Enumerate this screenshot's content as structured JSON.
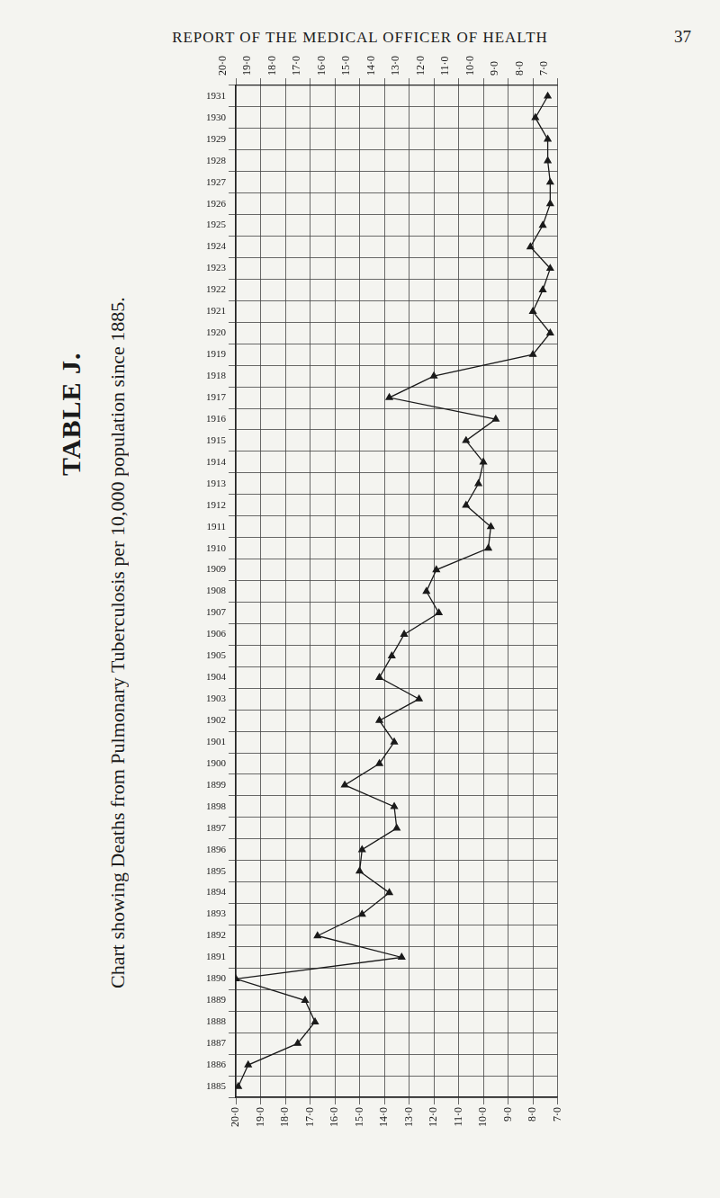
{
  "header": {
    "text": "REPORT OF THE MEDICAL OFFICER OF HEALTH",
    "page": "37"
  },
  "chart_data": {
    "type": "line",
    "title": "TABLE J.",
    "subtitle": "Chart showing Deaths from Pulmonary Tuberculosis per 10,000 population since 1885.",
    "orientation": "horizontal",
    "categories": [
      "1931",
      "1930",
      "1929",
      "1928",
      "1927",
      "1926",
      "1925",
      "1924",
      "1923",
      "1922",
      "1921",
      "1920",
      "1919",
      "1918",
      "1917",
      "1916",
      "1915",
      "1914",
      "1913",
      "1912",
      "1911",
      "1910",
      "1909",
      "1908",
      "1907",
      "1906",
      "1905",
      "1904",
      "1903",
      "1902",
      "1901",
      "1900",
      "1899",
      "1898",
      "1897",
      "1896",
      "1895",
      "1894",
      "1893",
      "1892",
      "1891",
      "1890",
      "1889",
      "1888",
      "1887",
      "1886",
      "1885"
    ],
    "values": [
      7.4,
      7.9,
      7.4,
      7.4,
      7.3,
      7.3,
      7.6,
      8.1,
      7.3,
      7.6,
      8.0,
      7.3,
      8.0,
      12.0,
      13.8,
      9.5,
      10.7,
      10.0,
      10.2,
      10.7,
      9.7,
      9.8,
      11.9,
      12.3,
      11.8,
      13.2,
      13.7,
      14.2,
      12.6,
      14.2,
      13.6,
      14.2,
      15.6,
      13.6,
      13.5,
      14.9,
      15.0,
      13.8,
      14.9,
      16.7,
      13.3,
      20.0,
      17.2,
      16.8,
      17.5,
      19.5,
      19.9
    ],
    "color": "#1a1a1a",
    "marker": "triangle",
    "xlim": [
      20,
      7
    ],
    "xticks": [
      {
        "value": 20,
        "label": "20·0"
      },
      {
        "value": 19,
        "label": "19·0"
      },
      {
        "value": 18,
        "label": "18·0"
      },
      {
        "value": 17,
        "label": "17·0"
      },
      {
        "value": 16,
        "label": "16·0"
      },
      {
        "value": 15,
        "label": "15·0"
      },
      {
        "value": 14,
        "label": "14·0"
      },
      {
        "value": 13,
        "label": "13·0"
      },
      {
        "value": 12,
        "label": "12·0"
      },
      {
        "value": 11,
        "label": "11·0"
      },
      {
        "value": 10,
        "label": "10·0"
      },
      {
        "value": 9,
        "label": "9·0"
      },
      {
        "value": 8,
        "label": "8·0"
      },
      {
        "value": 7,
        "label": "7·0"
      }
    ],
    "grid": true
  }
}
